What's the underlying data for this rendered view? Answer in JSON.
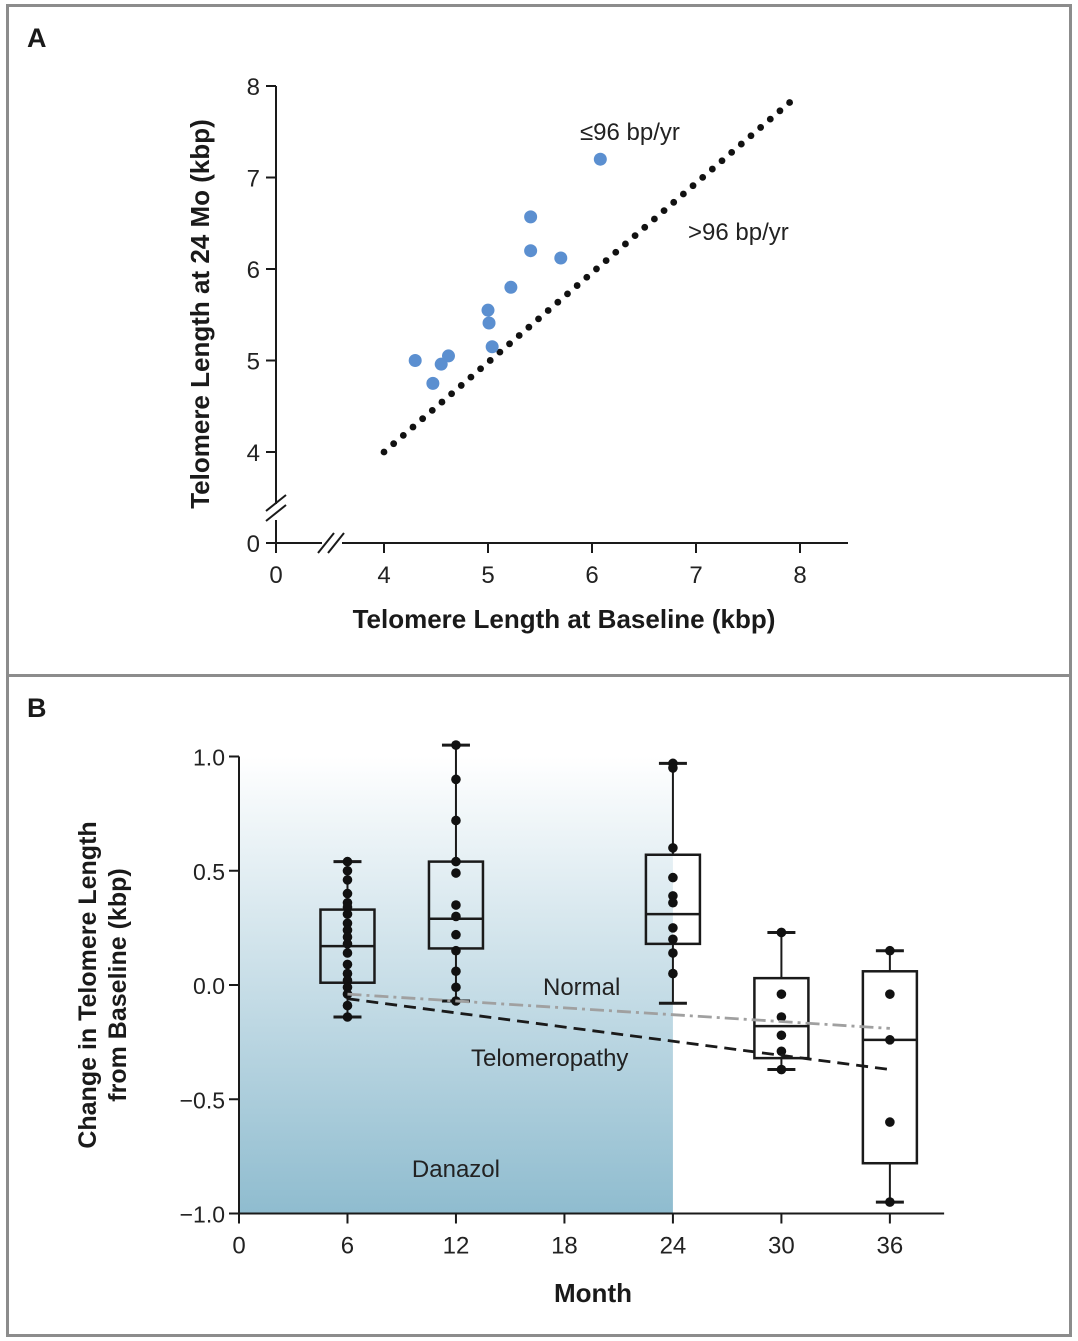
{
  "panels": {
    "a_label": "A",
    "b_label": "B"
  },
  "chart_data": [
    {
      "type": "scatter",
      "panel": "A",
      "xlabel": "Telomere Length at Baseline (kbp)",
      "ylabel": "Telomere Length at 24 Mo (kbp)",
      "x_ticks": [
        "0",
        "4",
        "5",
        "6",
        "7",
        "8"
      ],
      "y_ticks": [
        "0",
        "4",
        "5",
        "6",
        "7",
        "8"
      ],
      "xlim": [
        4,
        8
      ],
      "ylim": [
        4,
        8
      ],
      "axis_break": true,
      "annotations": [
        "≤96 bp/yr",
        ">96 bp/yr"
      ],
      "reference_line": {
        "style": "dotted",
        "x": [
          4.0,
          7.9
        ],
        "y": [
          4.0,
          7.82
        ]
      },
      "point_color": "#5b8fd0",
      "points": [
        {
          "x": 4.3,
          "y": 5.0
        },
        {
          "x": 4.47,
          "y": 4.75
        },
        {
          "x": 4.55,
          "y": 4.96
        },
        {
          "x": 4.62,
          "y": 5.05
        },
        {
          "x": 5.0,
          "y": 5.55
        },
        {
          "x": 5.01,
          "y": 5.41
        },
        {
          "x": 5.04,
          "y": 5.15
        },
        {
          "x": 5.22,
          "y": 5.8
        },
        {
          "x": 5.41,
          "y": 6.57
        },
        {
          "x": 5.41,
          "y": 6.2
        },
        {
          "x": 5.7,
          "y": 6.12
        },
        {
          "x": 6.08,
          "y": 7.2
        }
      ]
    },
    {
      "type": "box",
      "panel": "B",
      "xlabel": "Month",
      "ylabel": "Change in Telomere Length from Baseline (kbp)",
      "x_ticks": [
        "0",
        "6",
        "12",
        "18",
        "24",
        "30",
        "36"
      ],
      "y_ticks": [
        "1.0",
        "0.5",
        "0.0",
        "−0.5",
        "−1.0"
      ],
      "xlim": [
        0,
        39
      ],
      "ylim": [
        -1.0,
        1.0
      ],
      "shaded_region": {
        "label": "Danazol",
        "x": [
          0,
          24
        ],
        "color": "#8fbccf"
      },
      "boxes": [
        {
          "month": 6,
          "whisker_low": -0.14,
          "q1": 0.01,
          "median": 0.17,
          "q3": 0.33,
          "whisker_high": 0.54,
          "points": [
            0.54,
            0.5,
            0.46,
            0.4,
            0.36,
            0.34,
            0.31,
            0.27,
            0.24,
            0.21,
            0.18,
            0.14,
            0.09,
            0.05,
            0.02,
            -0.01,
            -0.04,
            -0.09,
            -0.14
          ]
        },
        {
          "month": 12,
          "whisker_low": -0.07,
          "q1": 0.16,
          "median": 0.29,
          "q3": 0.54,
          "whisker_high": 1.05,
          "points": [
            1.05,
            0.9,
            0.72,
            0.54,
            0.49,
            0.35,
            0.3,
            0.22,
            0.15,
            0.06,
            -0.01,
            -0.07
          ]
        },
        {
          "month": 24,
          "whisker_low": -0.08,
          "q1": 0.18,
          "median": 0.31,
          "q3": 0.57,
          "whisker_high": 0.97,
          "points": [
            0.97,
            0.95,
            0.6,
            0.47,
            0.39,
            0.36,
            0.25,
            0.2,
            0.14,
            0.05
          ]
        },
        {
          "month": 30,
          "whisker_low": -0.37,
          "q1": -0.32,
          "median": -0.18,
          "q3": 0.03,
          "whisker_high": 0.23,
          "points": [
            0.23,
            -0.04,
            -0.14,
            -0.22,
            -0.29,
            -0.37
          ]
        },
        {
          "month": 36,
          "whisker_low": -0.95,
          "q1": -0.78,
          "median": -0.24,
          "q3": 0.06,
          "whisker_high": 0.15,
          "points": [
            0.15,
            -0.04,
            -0.24,
            -0.6,
            -0.95
          ]
        }
      ],
      "series": [
        {
          "name": "Normal",
          "style": "dash-dot",
          "color": "#a0a0a0",
          "x": [
            6,
            36
          ],
          "y": [
            -0.04,
            -0.19
          ]
        },
        {
          "name": "Telomeropathy",
          "style": "dashed",
          "color": "#1a1a1a",
          "x": [
            6,
            36
          ],
          "y": [
            -0.06,
            -0.37
          ]
        }
      ]
    }
  ]
}
